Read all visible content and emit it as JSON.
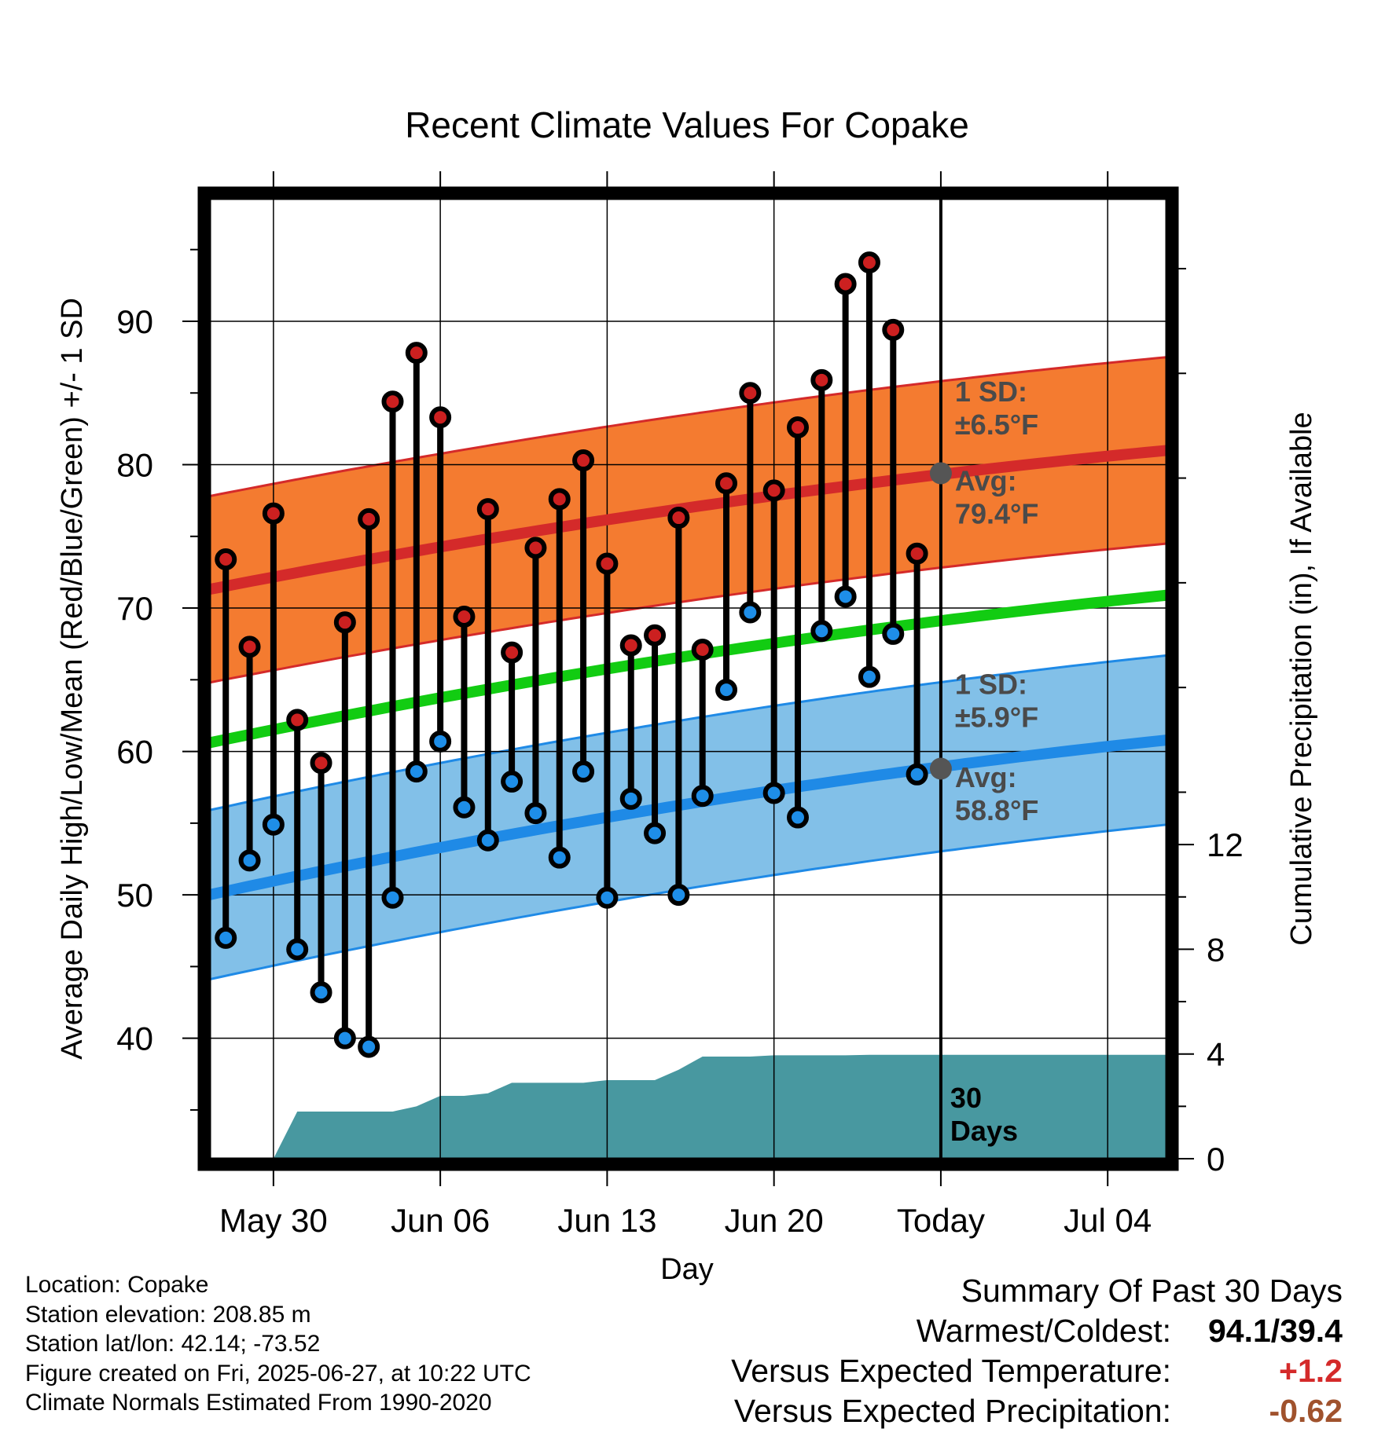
{
  "chart_data": {
    "type": "line",
    "title": "Recent Climate Values For Copake",
    "xlabel": "Day",
    "ylabel_left": "Average Daily High/Low/Mean (Red/Blue/Green) +/- 1 SD",
    "ylabel_right": "Cumulative Precipitation (in), If Available",
    "x_ticks": [
      "May 30",
      "Jun 06",
      "Jun 13",
      "Jun 20",
      "Today",
      "Jul 04"
    ],
    "y_ticks_left": [
      "40",
      "50",
      "60",
      "70",
      "80",
      "90"
    ],
    "y_ticks_right": [
      "0",
      "4",
      "8",
      "12"
    ],
    "ylim_left": [
      31.6,
      98.6
    ],
    "ylim_right": [
      0,
      36.7
    ],
    "x_range_days": [
      -30.7,
      9.5
    ],
    "grid": true,
    "today_marker_label": "30\nDays",
    "dates_days_before_today": [
      -30,
      -29,
      -28,
      -27,
      -26,
      -25,
      -24,
      -23,
      -22,
      -21,
      -20,
      -19,
      -18,
      -17,
      -16,
      -15,
      -14,
      -13,
      -12,
      -11,
      -10,
      -9,
      -8,
      -7,
      -6,
      -5,
      -4,
      -3,
      -2,
      -1
    ],
    "highs": [
      73.4,
      67.3,
      76.6,
      62.2,
      59.2,
      69.0,
      76.2,
      84.4,
      87.8,
      83.3,
      69.4,
      76.9,
      66.9,
      74.2,
      77.6,
      80.3,
      73.1,
      67.4,
      68.1,
      76.3,
      67.1,
      78.7,
      85.0,
      78.2,
      82.6,
      85.9,
      92.6,
      94.1,
      89.4,
      73.8
    ],
    "lows": [
      47.0,
      52.4,
      54.9,
      46.2,
      43.2,
      40.0,
      39.4,
      49.8,
      58.6,
      60.7,
      56.1,
      53.8,
      57.9,
      55.7,
      52.6,
      58.6,
      49.8,
      56.7,
      54.3,
      50.0,
      56.9,
      64.3,
      69.7,
      57.1,
      55.4,
      68.4,
      70.8,
      65.2,
      68.2,
      58.4
    ],
    "normal_high": {
      "start": 71.3,
      "today": 79.4,
      "end": 81.0,
      "sd": 6.5
    },
    "normal_low": {
      "start": 50.0,
      "today": 58.8,
      "end": 60.8,
      "sd": 5.9
    },
    "normal_mean": {
      "start": 60.6,
      "today": 69.1,
      "end": 70.9
    },
    "precip_cumulative": [
      {
        "d": -28,
        "v": 0.0
      },
      {
        "d": -27,
        "v": 1.8
      },
      {
        "d": -23,
        "v": 1.8
      },
      {
        "d": -22,
        "v": 2.0
      },
      {
        "d": -21,
        "v": 2.4
      },
      {
        "d": -20,
        "v": 2.4
      },
      {
        "d": -19,
        "v": 2.5
      },
      {
        "d": -18,
        "v": 2.9
      },
      {
        "d": -15,
        "v": 2.9
      },
      {
        "d": -14,
        "v": 3.0
      },
      {
        "d": -12,
        "v": 3.0
      },
      {
        "d": -11,
        "v": 3.4
      },
      {
        "d": -10,
        "v": 3.9
      },
      {
        "d": -8,
        "v": 3.9
      },
      {
        "d": -7,
        "v": 3.95
      },
      {
        "d": -4,
        "v": 3.95
      },
      {
        "d": -3,
        "v": 3.97
      },
      {
        "d": 9.5,
        "v": 3.97
      }
    ],
    "annotations": {
      "high_sd": "1 SD:\n±6.5°F",
      "high_avg": "Avg:\n79.4°F",
      "low_sd": "1 SD:\n±5.9°F",
      "low_avg": "Avg:\n58.8°F"
    },
    "colors": {
      "high_band": "#f47b30",
      "high_line": "#d42a2a",
      "low_band": "#82c0e8",
      "low_line": "#1f8ae6",
      "mean_line": "#12cc12",
      "precip": "#4898a0",
      "high_dot": "#cc2020",
      "low_dot": "#1e8ee8",
      "today_dot": "#555555"
    }
  },
  "info": {
    "location": "Location: Copake",
    "elevation": "Station elevation: 208.85 m",
    "latlon": "Station lat/lon: 42.14; -73.52",
    "created": "Figure created on Fri, 2025-06-27, at 10:22 UTC",
    "normals": "Climate Normals Estimated From 1990-2020"
  },
  "summary": {
    "title": "Summary Of Past 30 Days",
    "warm_label": "Warmest/Coldest:",
    "warm_value": "94.1/39.4",
    "temp_label": "Versus Expected Temperature:",
    "temp_value": "+1.2",
    "temp_color": "#d42a2a",
    "precip_label": "Versus Expected Precipitation:",
    "precip_value": "-0.62",
    "precip_color": "#a0522d"
  }
}
